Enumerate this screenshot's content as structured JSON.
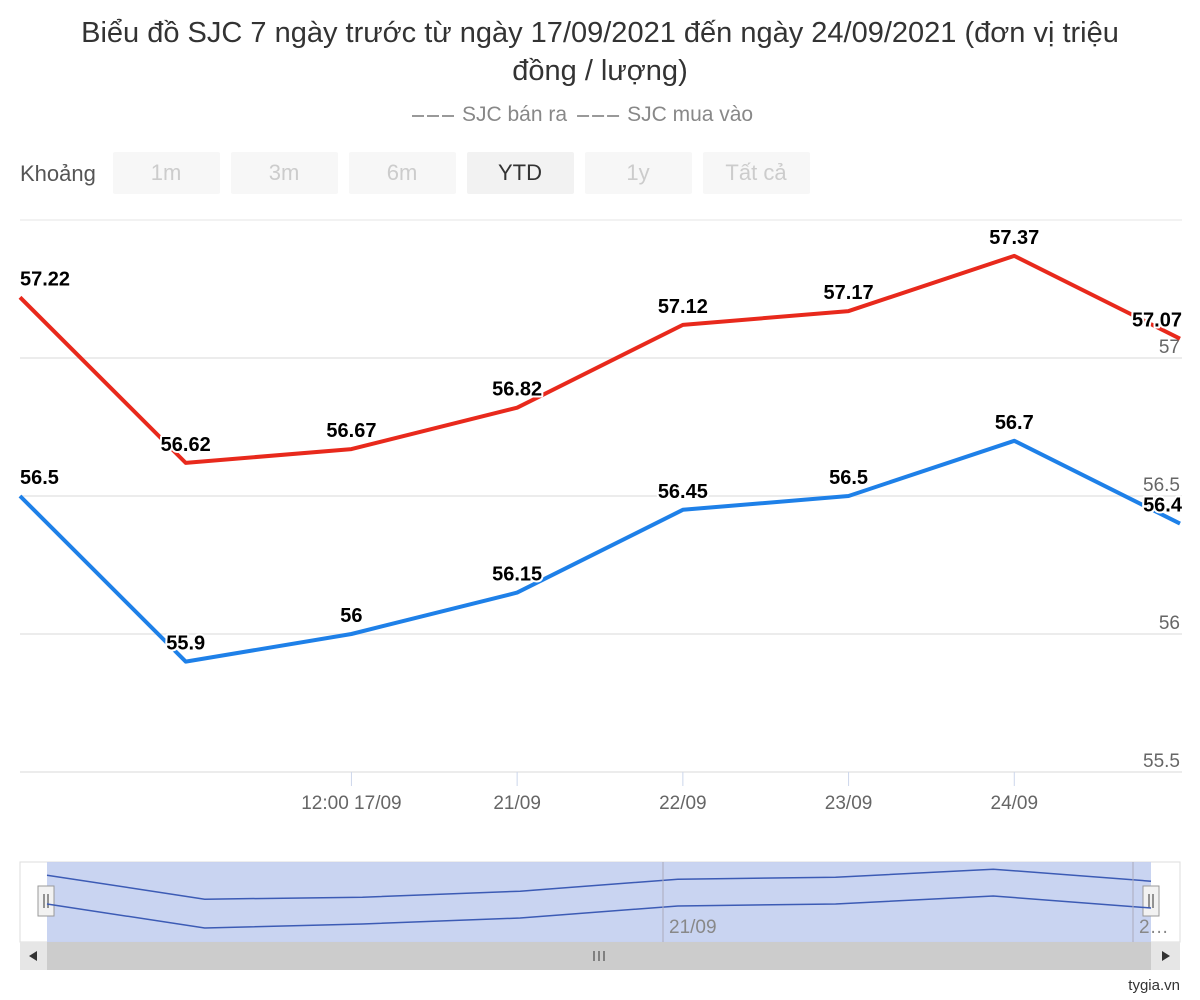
{
  "chart_data": {
    "type": "line",
    "title": "Biểu đồ SJC 7 ngày trước từ ngày 17/09/2021 đến ngày 24/09/2021 (đơn vị triệu đồng / lượng)",
    "categories": [
      null,
      null,
      "12:00 17/09",
      "21/09",
      "22/09",
      "23/09",
      "24/09",
      null
    ],
    "series": [
      {
        "name": "SJC bán ra",
        "color": "#e8291c",
        "values": [
          57.22,
          56.62,
          56.67,
          56.82,
          57.12,
          57.17,
          57.37,
          57.07
        ]
      },
      {
        "name": "SJC mua vào",
        "color": "#1e80e8",
        "values": [
          56.5,
          55.9,
          56,
          56.15,
          56.45,
          56.5,
          56.7,
          56.4
        ]
      }
    ],
    "ylim": [
      55.5,
      57.5
    ],
    "yticks": [
      55.5,
      56,
      56.5,
      57
    ],
    "grid": true
  },
  "range_selector": {
    "label": "Khoảng",
    "buttons": [
      "1m",
      "3m",
      "6m",
      "YTD",
      "1y",
      "Tất cả"
    ],
    "selected_index": 3
  },
  "navigator": {
    "labels": [
      "21/09",
      "2…"
    ]
  },
  "credit": "tygia.vn"
}
